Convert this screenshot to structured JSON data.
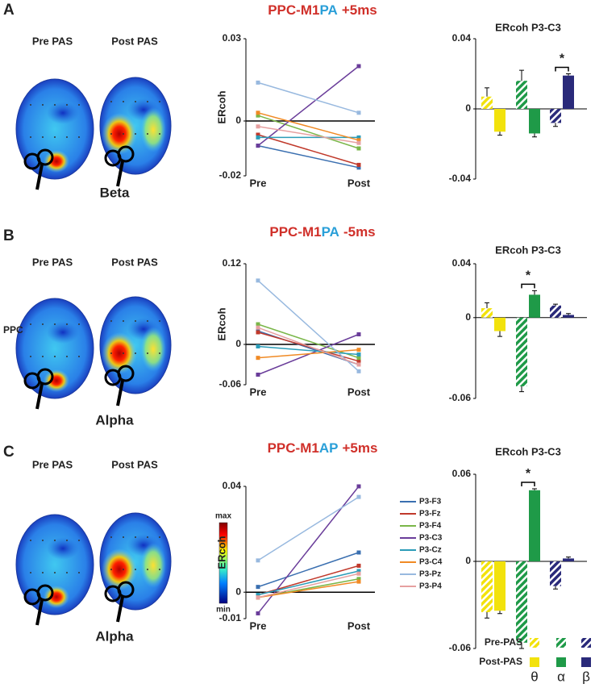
{
  "panels": [
    {
      "label": "A",
      "title": [
        "PPC-M1",
        "PA",
        "+5ms"
      ],
      "title_colors": [
        "#d0302a",
        "#2a9fd8",
        "#d0302a"
      ],
      "pre_label": "Pre PAS",
      "post_label": "Post PAS",
      "band": "Beta"
    },
    {
      "label": "B",
      "title": [
        "PPC-M1",
        "PA",
        "-5ms"
      ],
      "title_colors": [
        "#d0302a",
        "#2a9fd8",
        "#d0302a"
      ],
      "pre_label": "Pre PAS",
      "post_label": "Post PAS",
      "band": "Alpha",
      "site": "PPC"
    },
    {
      "label": "C",
      "title": [
        "PPC-M1",
        "AP",
        "+5ms"
      ],
      "title_colors": [
        "#d0302a",
        "#2a9fd8",
        "#d0302a"
      ],
      "pre_label": "Pre PAS",
      "post_label": "Post PAS",
      "band": "Alpha"
    }
  ],
  "colorbar": {
    "max": "max",
    "min": "min"
  },
  "bar_legend": {
    "rows": [
      "Pre-PAS",
      "Post-PAS"
    ],
    "bands": [
      "θ",
      "α",
      "β"
    ]
  },
  "chart_data": [
    {
      "type": "line",
      "y_label": "ERcoh",
      "categories": [
        "Pre",
        "Post"
      ],
      "ylim": [
        -0.02,
        0.03
      ],
      "yticks": [
        0.03,
        0,
        -0.02
      ],
      "series": [
        {
          "color": "#3a6fb0",
          "values": [
            -0.009,
            -0.017
          ]
        },
        {
          "color": "#c0392b",
          "values": [
            -0.005,
            -0.016
          ]
        },
        {
          "color": "#7ab648",
          "values": [
            0.002,
            -0.01
          ]
        },
        {
          "color": "#6a3d9a",
          "values": [
            -0.009,
            0.02
          ]
        },
        {
          "color": "#2b9cb8",
          "values": [
            -0.006,
            -0.006
          ]
        },
        {
          "color": "#f08a24",
          "values": [
            0.003,
            -0.007
          ]
        },
        {
          "color": "#98b9df",
          "values": [
            0.014,
            0.003
          ]
        },
        {
          "color": "#e6a0a0",
          "values": [
            -0.002,
            -0.008
          ]
        }
      ]
    },
    {
      "type": "bar",
      "title": "ERcoh P3-C3",
      "ylim": [
        -0.04,
        0.04
      ],
      "yticks": [
        0.04,
        0,
        -0.04
      ],
      "colors": [
        "#f2e20c",
        "#1f9a48",
        "#2a2a7a"
      ],
      "series": [
        {
          "hatched": true,
          "values": [
            0.007,
            0.016,
            -0.008
          ],
          "errors": [
            0.005,
            0.006,
            0.002
          ]
        },
        {
          "hatched": false,
          "values": [
            -0.013,
            -0.014,
            0.019
          ],
          "errors": [
            0.002,
            0.002,
            0.001
          ]
        }
      ],
      "significance": [
        null,
        null,
        "*"
      ]
    },
    {
      "type": "line",
      "y_label": "ERcoh",
      "categories": [
        "Pre",
        "Post"
      ],
      "ylim": [
        -0.06,
        0.12
      ],
      "yticks": [
        0.12,
        0,
        -0.06
      ],
      "series": [
        {
          "color": "#3a6fb0",
          "values": [
            0.02,
            -0.03
          ]
        },
        {
          "color": "#c0392b",
          "values": [
            0.018,
            -0.025
          ]
        },
        {
          "color": "#7ab648",
          "values": [
            0.03,
            -0.02
          ]
        },
        {
          "color": "#6a3d9a",
          "values": [
            -0.045,
            0.015
          ]
        },
        {
          "color": "#2b9cb8",
          "values": [
            -0.003,
            -0.015
          ]
        },
        {
          "color": "#f08a24",
          "values": [
            -0.02,
            -0.008
          ]
        },
        {
          "color": "#98b9df",
          "values": [
            0.095,
            -0.04
          ]
        },
        {
          "color": "#e6a0a0",
          "values": [
            0.025,
            -0.03
          ]
        }
      ]
    },
    {
      "type": "bar",
      "title": "ERcoh P3-C3",
      "ylim": [
        -0.06,
        0.04
      ],
      "yticks": [
        0.04,
        0,
        -0.06
      ],
      "colors": [
        "#f2e20c",
        "#1f9a48",
        "#2a2a7a"
      ],
      "series": [
        {
          "hatched": true,
          "values": [
            0.007,
            -0.051,
            0.009
          ],
          "errors": [
            0.004,
            0.004,
            0.001
          ]
        },
        {
          "hatched": false,
          "values": [
            -0.01,
            0.017,
            0.002
          ],
          "errors": [
            0.004,
            0.003,
            0.001
          ]
        }
      ],
      "significance": [
        null,
        "*",
        null
      ]
    },
    {
      "type": "line",
      "y_label": "ERcoh",
      "categories": [
        "Pre",
        "Post"
      ],
      "ylim": [
        -0.01,
        0.04
      ],
      "yticks": [
        0.04,
        0,
        -0.01
      ],
      "series": [
        {
          "name": "P3-F3",
          "color": "#3a6fb0",
          "values": [
            0.002,
            0.015
          ]
        },
        {
          "name": "P3-Fz",
          "color": "#c0392b",
          "values": [
            -0.001,
            0.01
          ]
        },
        {
          "name": "P3-F4",
          "color": "#7ab648",
          "values": [
            -0.002,
            0.005
          ]
        },
        {
          "name": "P3-C3",
          "color": "#6a3d9a",
          "values": [
            -0.008,
            0.04
          ]
        },
        {
          "name": "P3-Cz",
          "color": "#2b9cb8",
          "values": [
            -0.001,
            0.008
          ]
        },
        {
          "name": "P3-C4",
          "color": "#f08a24",
          "values": [
            -0.002,
            0.004
          ]
        },
        {
          "name": "P3-Pz",
          "color": "#98b9df",
          "values": [
            0.012,
            0.036
          ]
        },
        {
          "name": "P3-P4",
          "color": "#e6a0a0",
          "values": [
            -0.002,
            0.007
          ]
        }
      ]
    },
    {
      "type": "bar",
      "title": "ERcoh P3-C3",
      "ylim": [
        -0.06,
        0.06
      ],
      "yticks": [
        0.06,
        0,
        -0.06
      ],
      "colors": [
        "#f2e20c",
        "#1f9a48",
        "#2a2a7a"
      ],
      "series": [
        {
          "hatched": true,
          "values": [
            -0.035,
            -0.056,
            -0.017
          ],
          "errors": [
            0.004,
            0.004,
            0.002
          ]
        },
        {
          "hatched": false,
          "values": [
            -0.034,
            0.049,
            0.002
          ],
          "errors": [
            0.002,
            0.001,
            0.001
          ]
        }
      ],
      "significance": [
        null,
        "*",
        null
      ]
    }
  ]
}
